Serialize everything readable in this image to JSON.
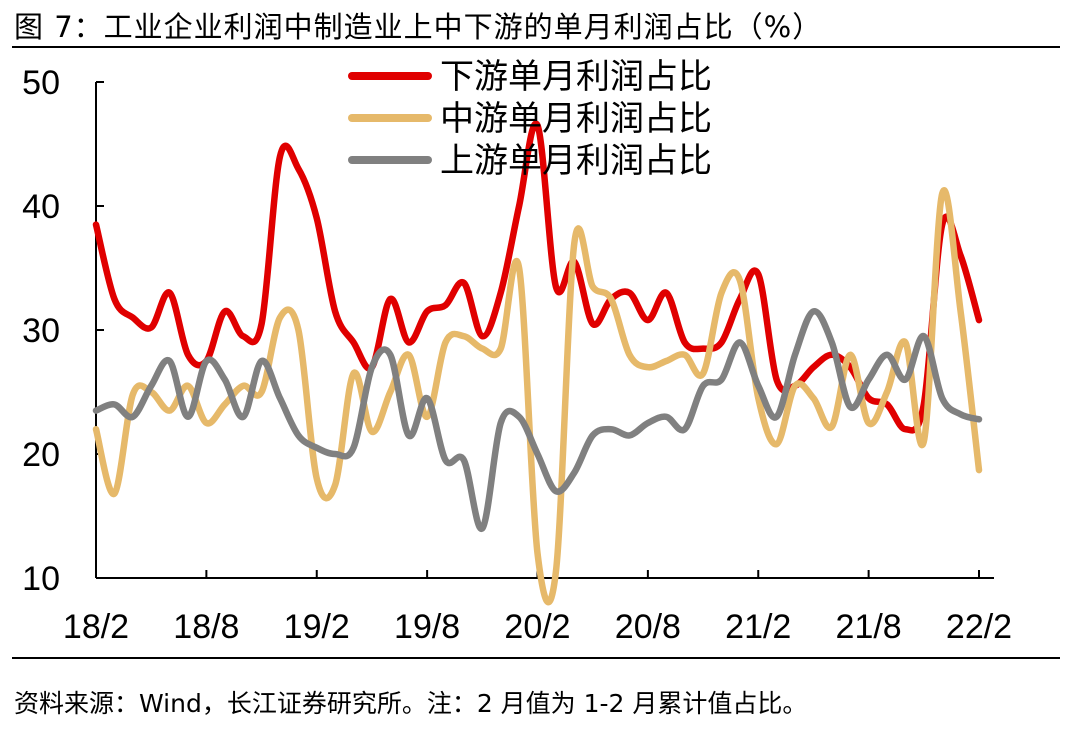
{
  "title": "图 7：工业企业利润中制造业上中下游的单月利润占比（%）",
  "source": "资料来源：Wind，长江证券研究所。注：2 月值为 1-2 月累计值占比。",
  "chart_data": {
    "type": "line",
    "title": "工业企业利润中制造业上中下游的单月利润占比（%）",
    "xlabel": "",
    "ylabel": "",
    "ylim": [
      10,
      50
    ],
    "yticks": [
      "10",
      "20",
      "30",
      "40",
      "50"
    ],
    "xticks": [
      "18/2",
      "18/8",
      "19/2",
      "19/8",
      "20/2",
      "20/8",
      "21/2",
      "21/8",
      "22/2"
    ],
    "legend_position": "top-center",
    "x": [
      "18/2",
      "18/3",
      "18/4",
      "18/5",
      "18/6",
      "18/7",
      "18/8",
      "18/9",
      "18/10",
      "18/11",
      "18/12",
      "19/1",
      "19/2",
      "19/3",
      "19/4",
      "19/5",
      "19/6",
      "19/7",
      "19/8",
      "19/9",
      "19/10",
      "19/11",
      "19/12",
      "20/1",
      "20/2",
      "20/3",
      "20/4",
      "20/5",
      "20/6",
      "20/7",
      "20/8",
      "20/9",
      "20/10",
      "20/11",
      "20/12",
      "21/1",
      "21/2",
      "21/3",
      "21/4",
      "21/5",
      "21/6",
      "21/7",
      "21/8",
      "21/9",
      "21/10",
      "21/11",
      "21/12",
      "22/1",
      "22/2"
    ],
    "series": [
      {
        "name": "下游单月利润占比",
        "color": "#e00000",
        "values": [
          38.5,
          32.5,
          31,
          30.2,
          33,
          28,
          27.5,
          31.5,
          29.5,
          30.5,
          44,
          43,
          39,
          31.5,
          29,
          27,
          32.5,
          29,
          31.5,
          32,
          33.8,
          29.5,
          33,
          40,
          46.5,
          33.5,
          35.5,
          30.5,
          32.5,
          33,
          30.8,
          33,
          29,
          28.5,
          29,
          32.5,
          34.5,
          26,
          25.5,
          27,
          28,
          27,
          24.5,
          24,
          22,
          24,
          38.5,
          36,
          30.8
        ]
      },
      {
        "name": "中游单月利润占比",
        "color": "#e6b96a",
        "values": [
          22,
          16.8,
          24.8,
          25,
          23.5,
          25.5,
          22.5,
          24,
          25.5,
          25,
          31,
          30,
          18,
          17.5,
          26.5,
          21.8,
          25,
          28,
          23,
          29,
          29.5,
          28.5,
          28.5,
          35,
          12,
          10.5,
          37,
          33.5,
          32.5,
          28,
          27,
          27.5,
          28,
          26.5,
          33,
          34,
          24.5,
          20.8,
          25.5,
          24.5,
          22.2,
          28,
          22.5,
          25,
          29,
          21,
          41,
          31.5,
          18.7
        ]
      },
      {
        "name": "上游单月利润占比",
        "color": "#808080",
        "values": [
          23.5,
          24,
          23,
          25.5,
          27.5,
          23,
          27.5,
          26,
          23,
          27.5,
          24.5,
          21.5,
          20.5,
          20,
          20.5,
          27,
          28,
          21.5,
          24.5,
          19.5,
          19.5,
          14,
          22.5,
          23,
          20,
          17,
          18.5,
          21.5,
          22,
          21.5,
          22.5,
          23,
          22,
          25.5,
          26,
          29,
          25.5,
          23,
          28,
          31.5,
          29,
          23.8,
          26,
          28,
          26,
          29.5,
          24.5,
          23.2,
          22.8
        ]
      }
    ]
  }
}
